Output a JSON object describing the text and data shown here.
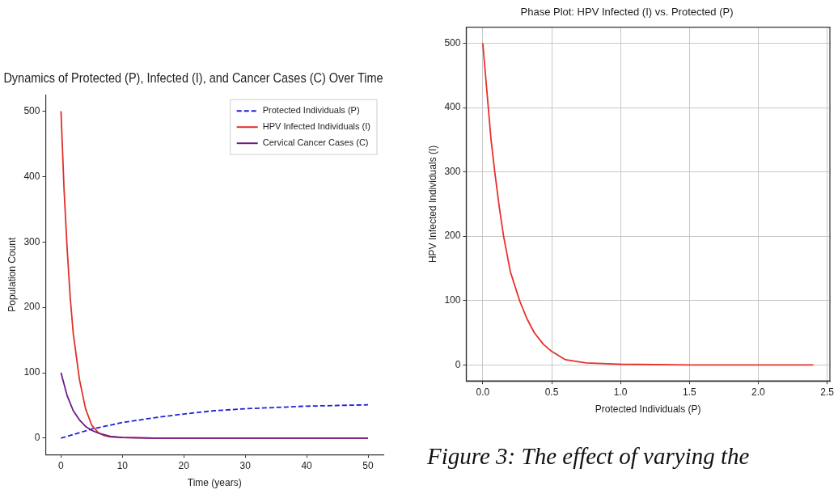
{
  "chart_data": [
    {
      "type": "line",
      "title": "Dynamics of Protected (P), Infected (I), and Cancer Cases (C) Over Time",
      "xlabel": "Time (years)",
      "ylabel": "Population Count",
      "xlim": [
        -2.5,
        52.5
      ],
      "xticks": [
        0,
        10,
        20,
        30,
        40,
        50
      ],
      "ylim": [
        -25,
        525
      ],
      "yticks": [
        0,
        100,
        200,
        300,
        400,
        500
      ],
      "grid": false,
      "legend": "top right",
      "marker": "none",
      "series": [
        {
          "name": "Protected Individuals (P)",
          "color": "#1f1fe0",
          "line_style": "dashed",
          "x": [
            0,
            2.5,
            5,
            7.5,
            10,
            15,
            20,
            25,
            30,
            35,
            40,
            45,
            50
          ],
          "values": [
            0,
            7,
            14,
            19,
            24,
            31,
            37,
            42,
            45,
            47,
            49,
            50,
            51
          ]
        },
        {
          "name": "HPV Infected Individuals (I)",
          "color": "#e0302a",
          "line_style": "solid",
          "x": [
            0,
            0.5,
            1,
            1.5,
            2,
            3,
            4,
            5,
            6,
            7,
            8,
            10,
            15,
            50
          ],
          "values": [
            500,
            380,
            290,
            215,
            160,
            90,
            45,
            20,
            9,
            4,
            2,
            1,
            0,
            0
          ]
        },
        {
          "name": "Cervical Cancer Cases (C)",
          "color": "#6a1b8a",
          "line_style": "solid",
          "x": [
            0,
            1,
            2,
            3,
            4,
            5,
            6,
            8,
            10,
            15,
            50
          ],
          "values": [
            100,
            65,
            42,
            28,
            18,
            12,
            8,
            3,
            1,
            0,
            0
          ]
        }
      ]
    },
    {
      "type": "line",
      "title": "Phase Plot: HPV Infected (I) vs. Protected (P)",
      "xlabel": "Protected Individuals (P)",
      "ylabel": "HPV Infected Individuals (I)",
      "xlim": [
        -0.12,
        2.52
      ],
      "xticks": [
        {
          "value": 0,
          "label": "0.0"
        },
        0.5,
        {
          "value": 1,
          "label": "1.0"
        },
        1.5,
        {
          "value": 2,
          "label": "2.0"
        },
        2.5
      ],
      "ylim": [
        -25,
        525
      ],
      "yticks": [
        0,
        100,
        200,
        300,
        400,
        500
      ],
      "grid": true,
      "marker": "none",
      "annotations": [
        "Figure 3: The effect of varying the"
      ],
      "series": [
        {
          "color": "#e8302a",
          "x": [
            0,
            0.02,
            0.04,
            0.06,
            0.087,
            0.12,
            0.151,
            0.2,
            0.267,
            0.32,
            0.374,
            0.44,
            0.5,
            0.6,
            0.75,
            1.0,
            1.5,
            2.4
          ],
          "values": [
            500,
            450,
            400,
            350,
            300,
            245,
            200,
            145,
            100,
            72,
            50,
            32,
            21,
            8,
            3,
            1,
            0,
            0
          ]
        }
      ]
    }
  ]
}
